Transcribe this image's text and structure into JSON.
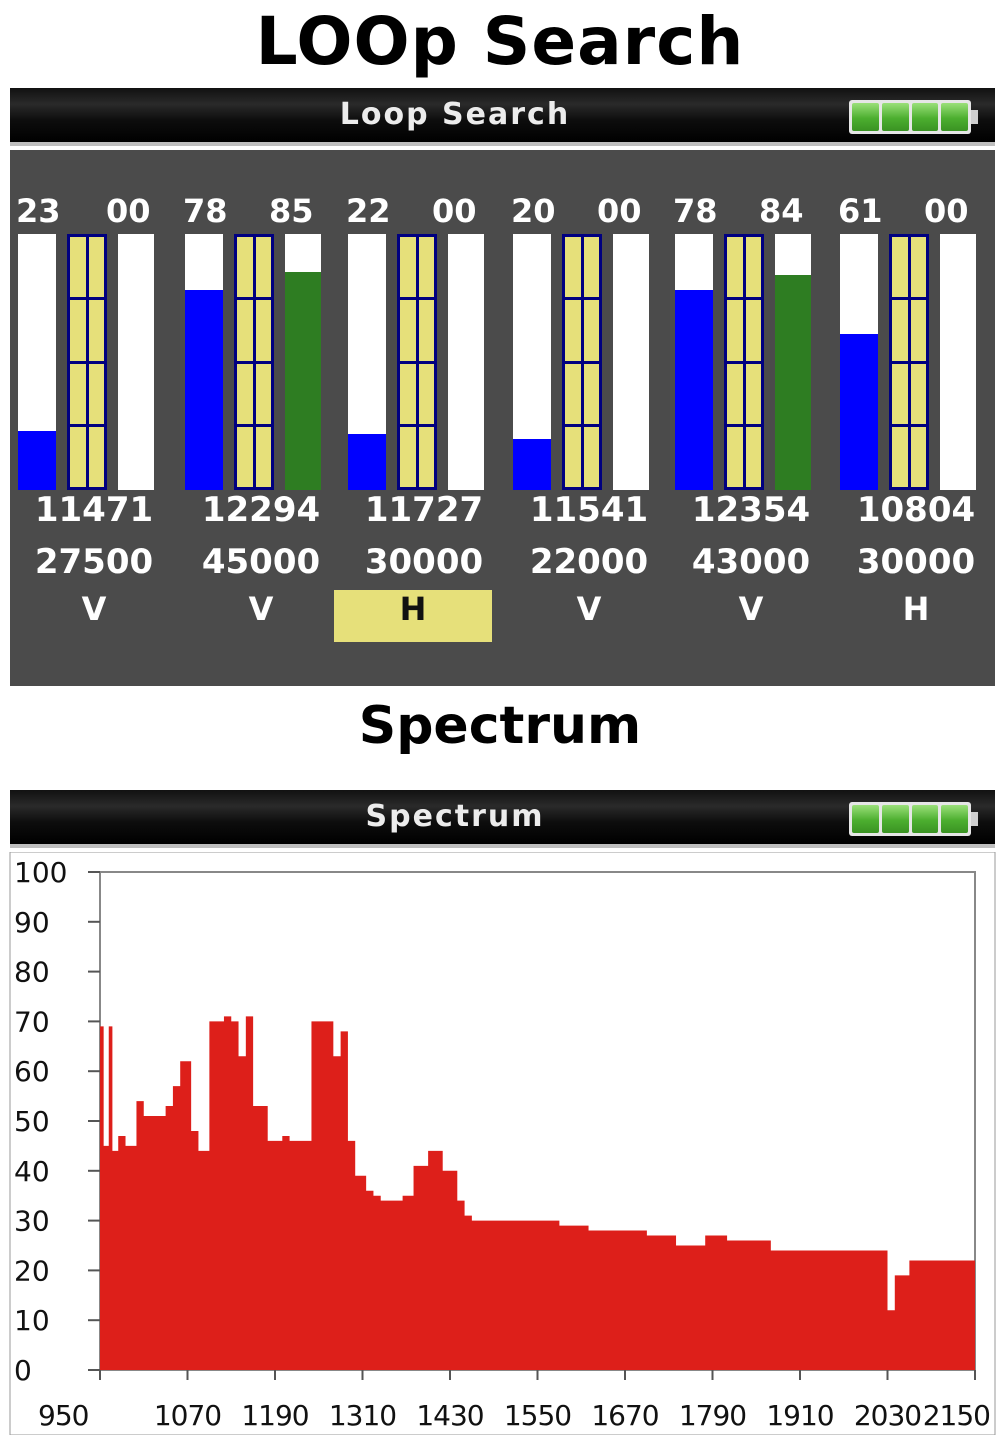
{
  "loop_heading": "LOOp Search",
  "spectrum_heading": "Spectrum",
  "loop_screen": {
    "title": "Loop Search",
    "battery_bars": 4,
    "colors": {
      "signal": "#0000ff",
      "quality": "#2e7d22",
      "ladder": "#e6e07a",
      "highlight": "#e6e07a",
      "panel": "#4b4b4b"
    },
    "channels": [
      {
        "level": "23",
        "quality": "00",
        "level_value": 23,
        "quality_value": 0,
        "frequency": "11471",
        "symbol_rate": "27500",
        "polarization": "V",
        "selected": false
      },
      {
        "level": "78",
        "quality": "85",
        "level_value": 78,
        "quality_value": 85,
        "frequency": "12294",
        "symbol_rate": "45000",
        "polarization": "V",
        "selected": false
      },
      {
        "level": "22",
        "quality": "00",
        "level_value": 22,
        "quality_value": 0,
        "frequency": "11727",
        "symbol_rate": "30000",
        "polarization": "H",
        "selected": true
      },
      {
        "level": "20",
        "quality": "00",
        "level_value": 20,
        "quality_value": 0,
        "frequency": "11541",
        "symbol_rate": "22000",
        "polarization": "V",
        "selected": false
      },
      {
        "level": "78",
        "quality": "84",
        "level_value": 78,
        "quality_value": 84,
        "frequency": "12354",
        "symbol_rate": "43000",
        "polarization": "V",
        "selected": false
      },
      {
        "level": "61",
        "quality": "00",
        "level_value": 61,
        "quality_value": 0,
        "frequency": "10804",
        "symbol_rate": "30000",
        "polarization": "H",
        "selected": false
      }
    ]
  },
  "spectrum_screen": {
    "title": "Spectrum",
    "battery_bars": 4
  },
  "chart_data": {
    "type": "area",
    "title": "",
    "xlabel": "",
    "ylabel": "",
    "xlim": [
      950,
      2150
    ],
    "ylim": [
      0,
      100
    ],
    "x_ticks": [
      "950",
      "1070",
      "1190",
      "1310",
      "1430",
      "1550",
      "1670",
      "1790",
      "1910",
      "2030",
      "2150"
    ],
    "y_ticks": [
      "0",
      "10",
      "20",
      "30",
      "40",
      "50",
      "60",
      "70",
      "80",
      "90",
      "100"
    ],
    "grid": false,
    "color": "#dd1f1a",
    "x": [
      955,
      962,
      967,
      975,
      985,
      1000,
      1010,
      1040,
      1050,
      1060,
      1075,
      1085,
      1100,
      1110,
      1120,
      1130,
      1140,
      1150,
      1160,
      1180,
      1190,
      1200,
      1210,
      1240,
      1250,
      1260,
      1270,
      1280,
      1290,
      1300,
      1315,
      1325,
      1335,
      1345,
      1355,
      1365,
      1380,
      1400,
      1420,
      1440,
      1450,
      1460,
      1470,
      1490,
      1510,
      1520,
      1540,
      1580,
      1620,
      1660,
      1700,
      1740,
      1780,
      1810,
      1840,
      1870,
      1900,
      1950,
      1990,
      2030,
      2040,
      2060,
      2080,
      2100,
      2130,
      2150
    ],
    "y": [
      69,
      45,
      69,
      44,
      47,
      45,
      54,
      51,
      53,
      57,
      62,
      48,
      44,
      70,
      70,
      71,
      70,
      63,
      71,
      53,
      46,
      46,
      47,
      46,
      70,
      70,
      70,
      63,
      68,
      46,
      39,
      36,
      35,
      34,
      34,
      34,
      35,
      41,
      44,
      40,
      34,
      31,
      30,
      30,
      30,
      30,
      30,
      30,
      29,
      28,
      28,
      27,
      25,
      27,
      26,
      26,
      24,
      24,
      24,
      24,
      12,
      19,
      22,
      22,
      22,
      22
    ]
  }
}
